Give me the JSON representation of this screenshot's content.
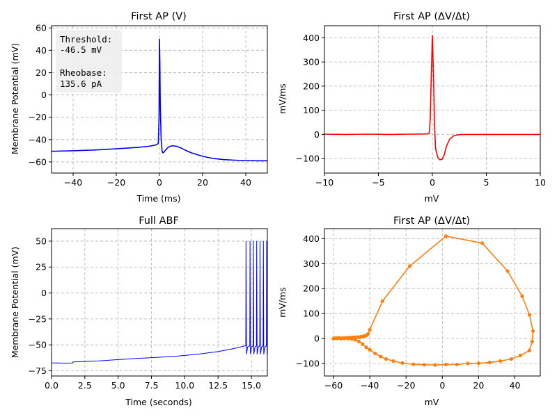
{
  "chart_data": [
    {
      "type": "line",
      "title": "First AP (V)",
      "xlabel": "Time (ms)",
      "ylabel": "Membrane Potential (mV)",
      "xlim": [
        -50,
        50
      ],
      "ylim": [
        -70,
        62
      ],
      "xticks": [
        -40,
        -20,
        0,
        20,
        40
      ],
      "yticks": [
        -60,
        -40,
        -20,
        0,
        20,
        40,
        60
      ],
      "grid": true,
      "color": "#0000ff",
      "annotation": {
        "lines": [
          "Threshold:",
          "-46.5 mV",
          "",
          "Rheobase:",
          "135.6 pA"
        ],
        "placement": "top-left"
      },
      "series": [
        {
          "x": [
            -50,
            -40,
            -30,
            -20,
            -10,
            -5,
            -2,
            -1,
            -0.5,
            -0.2,
            0,
            0.2,
            0.4,
            0.8,
            1.2,
            1.6,
            2,
            3,
            4,
            5,
            6,
            8,
            10,
            12,
            15,
            20,
            25,
            30,
            35,
            40,
            45,
            50
          ],
          "y": [
            -50.5,
            -50,
            -49.3,
            -48.3,
            -47,
            -46,
            -45,
            -44.2,
            -43,
            -20,
            50,
            30,
            -10,
            -40,
            -50,
            -52,
            -51.5,
            -49,
            -47,
            -46,
            -45.5,
            -46,
            -47.5,
            -49.5,
            -52,
            -55,
            -57,
            -58,
            -58.5,
            -58.8,
            -59,
            -59
          ]
        }
      ]
    },
    {
      "type": "line",
      "title": "First AP (ΔV/Δt)",
      "xlabel": "mV",
      "ylabel": "mV/ms",
      "xlim": [
        -10,
        10
      ],
      "ylim": [
        -160,
        450
      ],
      "xticks": [
        -10,
        -5,
        0,
        5,
        10
      ],
      "yticks": [
        -100,
        0,
        100,
        200,
        300,
        400
      ],
      "grid": true,
      "color": "#ff0000",
      "series": [
        {
          "x": [
            -10,
            -8,
            -6,
            -4,
            -2,
            -0.5,
            -0.3,
            -0.2,
            -0.1,
            0,
            0.1,
            0.2,
            0.3,
            0.5,
            0.7,
            0.9,
            1.1,
            1.3,
            1.6,
            2,
            2.5,
            3,
            5,
            10
          ],
          "y": [
            1,
            0,
            1,
            0,
            1,
            2,
            5,
            60,
            250,
            410,
            250,
            40,
            -60,
            -95,
            -105,
            -103,
            -85,
            -50,
            -20,
            -5,
            -1,
            0,
            0,
            0
          ]
        }
      ]
    },
    {
      "type": "line",
      "title": "Full ABF",
      "xlabel": "Time (seconds)",
      "ylabel": "Membrane Potential (mV)",
      "xlim": [
        0,
        16.2
      ],
      "ylim": [
        -80,
        62
      ],
      "xticks": [
        0,
        2.5,
        5,
        7.5,
        10,
        12.5,
        15
      ],
      "xticklabels": [
        "0.0",
        "2.5",
        "5.0",
        "7.5",
        "10.0",
        "12.5",
        "15.0"
      ],
      "yticks": [
        -75,
        -50,
        -25,
        0,
        25,
        50
      ],
      "grid": true,
      "color": "#0000ff",
      "series": [
        {
          "x": [
            0,
            0.5,
            1,
            1.6,
            1.6,
            2.5,
            3.5,
            5,
            6.5,
            8,
            9.5,
            11,
            12.5,
            13.5,
            14.2,
            14.5
          ],
          "y": [
            -67.5,
            -67.5,
            -67.6,
            -67.5,
            -66.5,
            -66,
            -65.5,
            -64.2,
            -63,
            -62,
            -60.8,
            -59,
            -56.5,
            -54,
            -52,
            -51
          ]
        }
      ],
      "spike_times": [
        14.6,
        14.9,
        15.15,
        15.4,
        15.65,
        15.9,
        16.15
      ],
      "spike_peak": 50,
      "spike_trough": -59
    },
    {
      "type": "scatter",
      "title": "First AP (ΔV/Δt)",
      "xlabel": "mV",
      "ylabel": "mV/ms",
      "xlim": [
        -65,
        54
      ],
      "ylim": [
        -150,
        440
      ],
      "xticks": [
        -60,
        -40,
        -20,
        0,
        20,
        40
      ],
      "yticks": [
        -100,
        0,
        100,
        200,
        300,
        400
      ],
      "grid": true,
      "color": "#ff7f0e",
      "series": [
        {
          "x": [
            -60,
            -59,
            -58,
            -57,
            -56,
            -55,
            -54,
            -53,
            -52,
            -51,
            -50,
            -49,
            -48,
            -47,
            -46,
            -45,
            -44,
            -43,
            -42,
            -41,
            -40,
            -33,
            -18,
            2,
            22,
            36,
            44,
            48,
            50,
            49.5,
            48,
            43,
            38,
            32,
            26,
            20,
            14,
            8,
            2,
            -4,
            -10,
            -16,
            -22,
            -27,
            -31,
            -34,
            -37,
            -40,
            -42,
            -44,
            -46,
            -48,
            -50,
            -52,
            -54,
            -56,
            -58
          ],
          "y": [
            0,
            2,
            1,
            3,
            0,
            2,
            1,
            3,
            2,
            4,
            3,
            5,
            4,
            6,
            5,
            7,
            8,
            10,
            12,
            18,
            35,
            150,
            290,
            410,
            382,
            270,
            170,
            95,
            30,
            -12,
            -48,
            -68,
            -82,
            -90,
            -96,
            -99,
            -100,
            -104,
            -104,
            -106,
            -105,
            -103,
            -98,
            -90,
            -82,
            -72,
            -60,
            -45,
            -35,
            -22,
            -12,
            -5,
            -2,
            0,
            1,
            0,
            1
          ]
        }
      ]
    }
  ]
}
